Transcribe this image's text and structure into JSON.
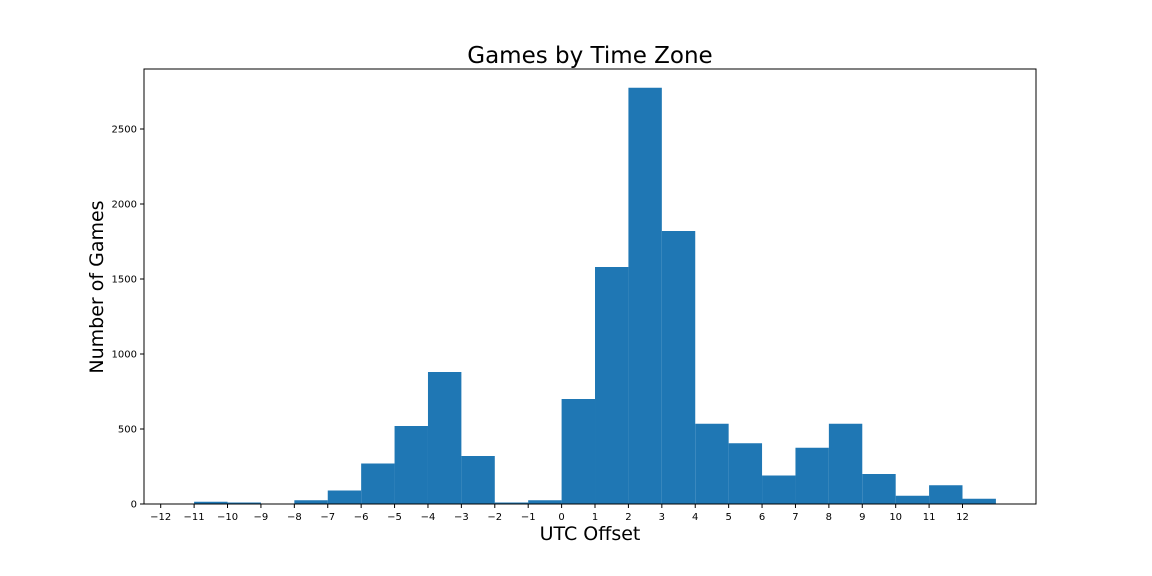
{
  "chart_data": {
    "type": "bar",
    "title": "Games by Time Zone",
    "xlabel": "UTC Offset",
    "ylabel": "Number of Games",
    "bar_color": "#1f77b4",
    "xlim": [
      -12.5,
      14.2
    ],
    "ylim": [
      0,
      2900
    ],
    "x_ticks": [
      -12,
      -11,
      -10,
      -9,
      -8,
      -7,
      -6,
      -5,
      -4,
      -3,
      -2,
      -1,
      0,
      1,
      2,
      3,
      4,
      5,
      6,
      7,
      8,
      9,
      10,
      11,
      12
    ],
    "x_tick_labels": [
      "−12",
      "−11",
      "−10",
      "−9",
      "−8",
      "−7",
      "−6",
      "−5",
      "−4",
      "−3",
      "−2",
      "−1",
      "0",
      "1",
      "2",
      "3",
      "4",
      "5",
      "6",
      "7",
      "8",
      "9",
      "10",
      "11",
      "12"
    ],
    "y_ticks": [
      0,
      500,
      1000,
      1500,
      2000,
      2500
    ],
    "y_tick_labels": [
      "0",
      "500",
      "1000",
      "1500",
      "2000",
      "2500"
    ],
    "bins": [
      {
        "x0": -12,
        "x1": -11,
        "value": 0
      },
      {
        "x0": -11,
        "x1": -10,
        "value": 15
      },
      {
        "x0": -10,
        "x1": -9,
        "value": 10
      },
      {
        "x0": -9,
        "x1": -8,
        "value": 0
      },
      {
        "x0": -8,
        "x1": -7,
        "value": 25
      },
      {
        "x0": -7,
        "x1": -6,
        "value": 90
      },
      {
        "x0": -6,
        "x1": -5,
        "value": 270
      },
      {
        "x0": -5,
        "x1": -4,
        "value": 520
      },
      {
        "x0": -4,
        "x1": -3,
        "value": 880
      },
      {
        "x0": -3,
        "x1": -2,
        "value": 320
      },
      {
        "x0": -2,
        "x1": -1,
        "value": 10
      },
      {
        "x0": -1,
        "x1": 0,
        "value": 25
      },
      {
        "x0": 0,
        "x1": 1,
        "value": 700
      },
      {
        "x0": 1,
        "x1": 2,
        "value": 1580
      },
      {
        "x0": 2,
        "x1": 3,
        "value": 2775
      },
      {
        "x0": 3,
        "x1": 4,
        "value": 1820
      },
      {
        "x0": 4,
        "x1": 5,
        "value": 535
      },
      {
        "x0": 5,
        "x1": 6,
        "value": 405
      },
      {
        "x0": 6,
        "x1": 7,
        "value": 190
      },
      {
        "x0": 7,
        "x1": 8,
        "value": 375
      },
      {
        "x0": 8,
        "x1": 9,
        "value": 535
      },
      {
        "x0": 9,
        "x1": 10,
        "value": 200
      },
      {
        "x0": 10,
        "x1": 11,
        "value": 55
      },
      {
        "x0": 11,
        "x1": 12,
        "value": 125
      },
      {
        "x0": 12,
        "x1": 13,
        "value": 35
      }
    ]
  }
}
